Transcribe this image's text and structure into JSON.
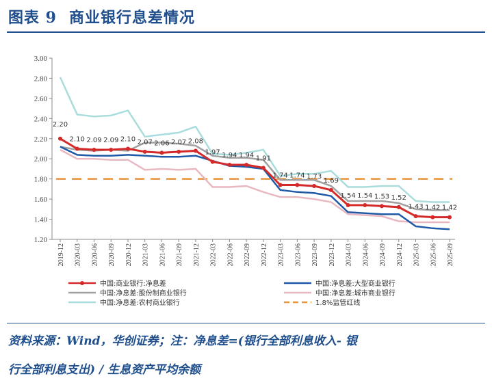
{
  "header": {
    "figure_no": "图表 9",
    "title": "商业银行息差情况"
  },
  "source": {
    "line1": "资料来源：Wind，华创证券；注：净息差=(银行全部利息收入- 银",
    "line2": "行全部利息支出) / 生息资产平均余额"
  },
  "chart_data": {
    "type": "line",
    "x": [
      "2019-12",
      "2020-03",
      "2020-06",
      "2020-09",
      "2020-12",
      "2021-03",
      "2021-06",
      "2021-09",
      "2021-12",
      "2022-03",
      "2022-06",
      "2022-09",
      "2022-12",
      "2023-03",
      "2023-06",
      "2023-09",
      "2023-12",
      "2024-03",
      "2024-06",
      "2024-09",
      "2024-12",
      "2025-03",
      "2025-06",
      "2025-09"
    ],
    "ylim": [
      1.2,
      3.0
    ],
    "yticks": [
      "1.20",
      "1.40",
      "1.60",
      "1.80",
      "2.00",
      "2.20",
      "2.40",
      "2.60",
      "2.80",
      "3.00"
    ],
    "series": [
      {
        "name": "中国:商业银行:净息差",
        "color": "#d42a2a",
        "labeled": true,
        "values": [
          2.2,
          2.1,
          2.09,
          2.09,
          2.1,
          2.07,
          2.06,
          2.07,
          2.08,
          1.97,
          1.94,
          1.94,
          1.91,
          1.74,
          1.74,
          1.73,
          1.69,
          1.54,
          1.54,
          1.53,
          1.52,
          1.43,
          1.42,
          1.42
        ]
      },
      {
        "name": "中国:净息差:大型商业银行",
        "color": "#1f5aa8",
        "values": [
          2.12,
          2.04,
          2.03,
          2.03,
          2.04,
          2.03,
          2.02,
          2.02,
          2.03,
          1.98,
          1.93,
          1.92,
          1.9,
          1.69,
          1.67,
          1.66,
          1.63,
          1.47,
          1.46,
          1.45,
          1.45,
          1.33,
          1.31,
          1.3
        ]
      },
      {
        "name": "中国:净息差:股份制商业银行",
        "color": "#a0a0a0",
        "values": [
          2.12,
          2.09,
          2.08,
          2.09,
          2.08,
          2.16,
          2.16,
          2.15,
          2.13,
          2.03,
          2.01,
          2.01,
          1.99,
          1.79,
          1.79,
          1.79,
          1.73,
          1.58,
          1.58,
          1.58,
          1.56,
          1.5,
          1.49,
          1.49
        ]
      },
      {
        "name": "中国:净息差:城市商业银行",
        "color": "#e8b8c0",
        "values": [
          2.09,
          2.0,
          2.0,
          1.99,
          1.99,
          1.89,
          1.9,
          1.89,
          1.9,
          1.72,
          1.72,
          1.73,
          1.67,
          1.62,
          1.62,
          1.6,
          1.57,
          1.45,
          1.44,
          1.43,
          1.38,
          1.37,
          1.37,
          1.37
        ]
      },
      {
        "name": "中国:净息差:农村商业银行",
        "color": "#a9dcdc",
        "values": [
          2.81,
          2.44,
          2.42,
          2.43,
          2.48,
          2.22,
          2.24,
          2.26,
          2.32,
          2.05,
          2.04,
          2.06,
          2.09,
          1.83,
          1.85,
          1.85,
          1.88,
          1.72,
          1.72,
          1.73,
          1.73,
          1.58,
          1.57,
          1.57
        ]
      }
    ],
    "reference_line": {
      "name": "1.8%监管红线",
      "value": 1.8,
      "color": "#e8943a"
    },
    "legend_placement": "bottom"
  }
}
